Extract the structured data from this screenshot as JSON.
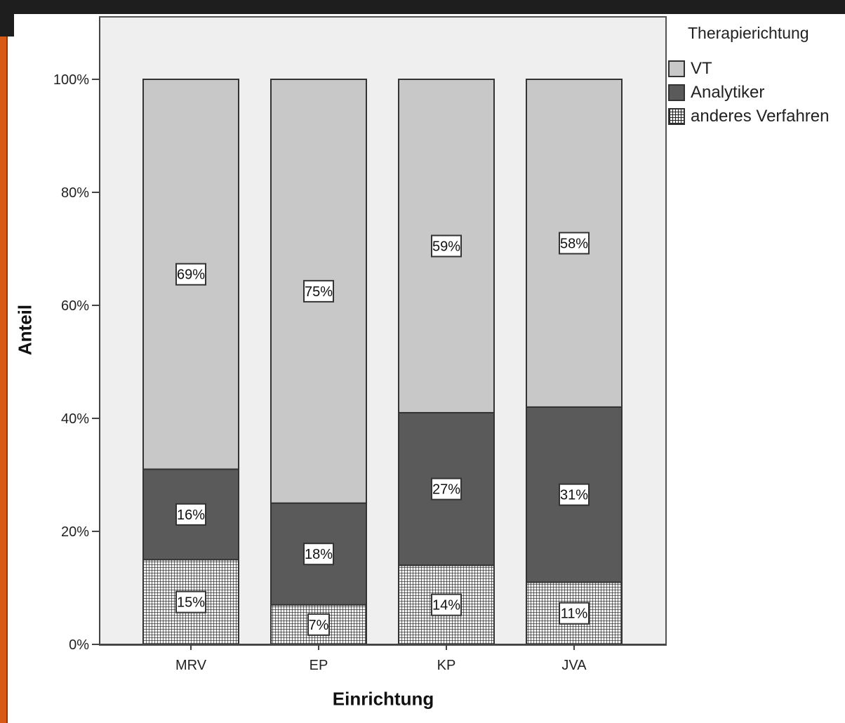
{
  "chart_data": {
    "type": "bar",
    "stacked": true,
    "percent": true,
    "categories": [
      "MRV",
      "EP",
      "KP",
      "JVA"
    ],
    "series": [
      {
        "name": "anderes Verfahren",
        "values": [
          15,
          7,
          14,
          11
        ],
        "labels": [
          "15%",
          "7%",
          "14%",
          "11%"
        ],
        "color": "#f2f2f2",
        "pattern": "grid"
      },
      {
        "name": "Analytiker",
        "values": [
          16,
          18,
          27,
          31
        ],
        "labels": [
          "16%",
          "18%",
          "27%",
          "31%"
        ],
        "color": "#5a5a5a"
      },
      {
        "name": "VT",
        "values": [
          69,
          75,
          59,
          58
        ],
        "labels": [
          "69%",
          "75%",
          "59%",
          "58%"
        ],
        "color": "#c8c8c8"
      }
    ],
    "xlabel": "Einrichtung",
    "ylabel": "Anteil",
    "ylim": [
      0,
      100
    ],
    "yticks": [
      "0%",
      "20%",
      "40%",
      "60%",
      "80%",
      "100%"
    ],
    "legend_title": "Therapierichtung",
    "legend_order": [
      "VT",
      "Analytiker",
      "anderes Verfahren"
    ],
    "legend_position": "top-right",
    "plot_background": "#efefef",
    "grid": false
  }
}
